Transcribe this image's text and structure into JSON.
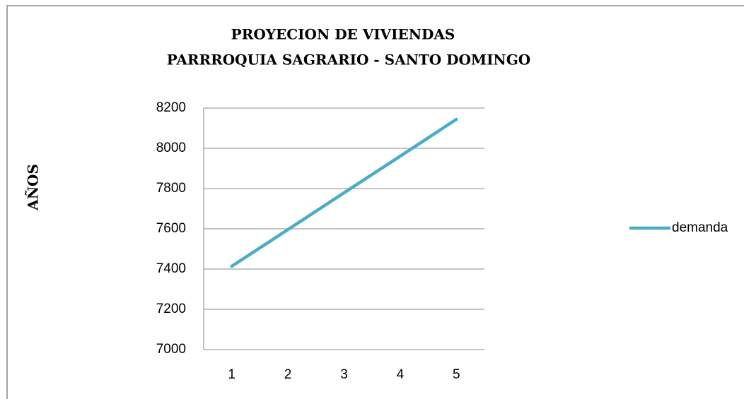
{
  "chart_data": {
    "type": "line",
    "title": "PROYECION DE VIVIENDAS",
    "subtitle": "PARRROQUIA SAGRARIO - SANTO DOMINGO",
    "y_label": "AÑOS",
    "categories": [
      "1",
      "2",
      "3",
      "4",
      "5"
    ],
    "series": [
      {
        "name": "demanda",
        "color": "#4bacc6",
        "values": [
          7414,
          7596,
          7779,
          7961,
          8144
        ]
      }
    ],
    "ylim": [
      7000,
      8200
    ],
    "yticks": [
      7000,
      7200,
      7400,
      7600,
      7800,
      8000,
      8200
    ],
    "grid": true,
    "legend": "right"
  }
}
